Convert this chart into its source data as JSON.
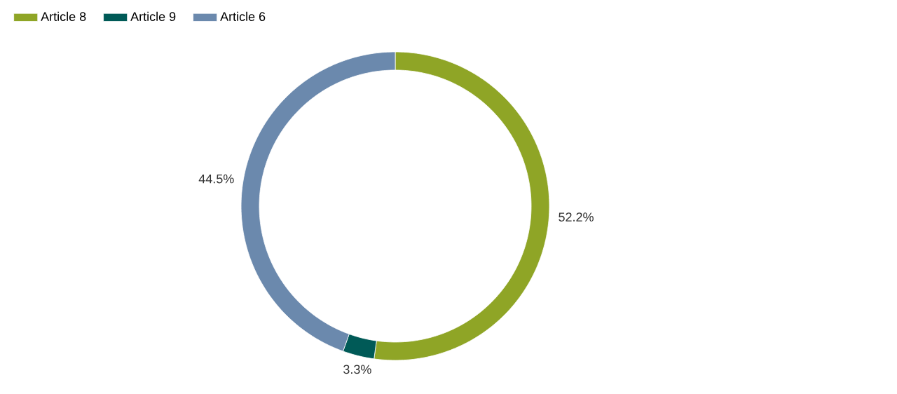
{
  "chart_data": {
    "type": "donut",
    "categories": [
      "Article 8",
      "Article 9",
      "Article 6"
    ],
    "values": [
      52.2,
      3.3,
      44.5
    ],
    "value_labels": [
      "52.2%",
      "3.3%",
      "44.5%"
    ],
    "colors": [
      "#8fa526",
      "#005a57",
      "#6b89ad"
    ],
    "legend": "top left"
  }
}
